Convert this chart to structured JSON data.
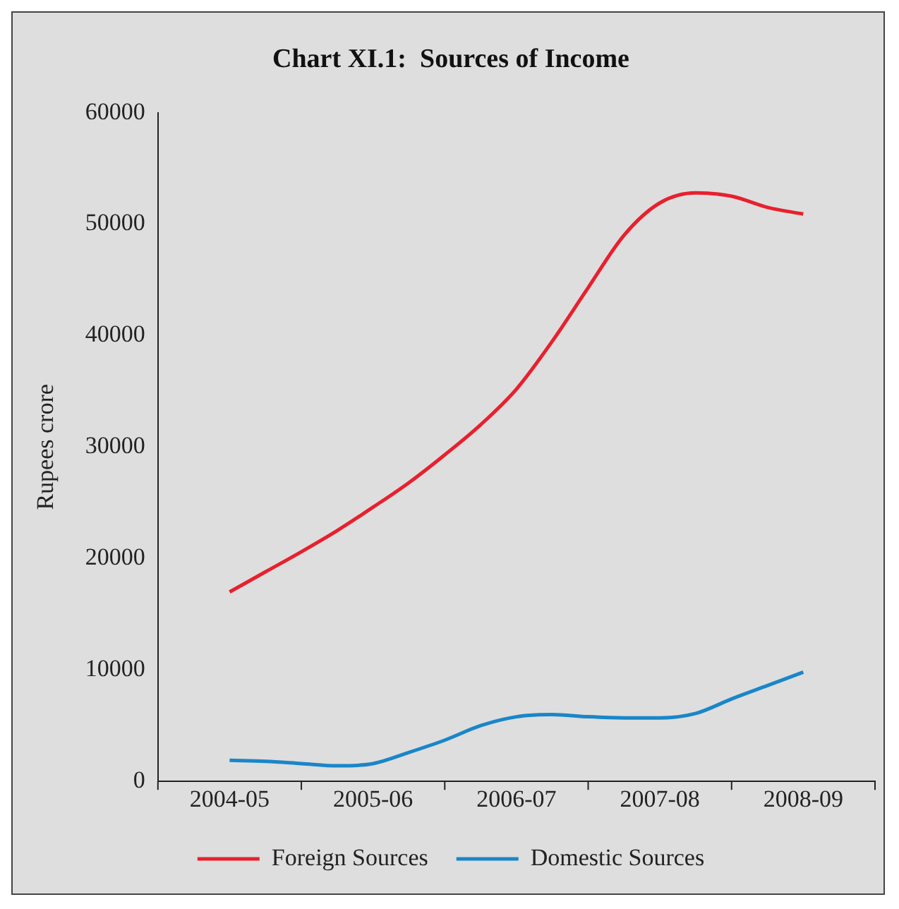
{
  "chart_data": {
    "type": "line",
    "title": "Chart XI.1:  Sources of Income",
    "ylabel": "Rupees crore",
    "categories": [
      "2004-05",
      null,
      null,
      null,
      "2005-06",
      null,
      null,
      null,
      "2006-07",
      null,
      null,
      null,
      "2007-08",
      null,
      null,
      null,
      "2008-09"
    ],
    "series": [
      {
        "name": "Foreign Sources",
        "color": "#e8202e",
        "values": [
          17000,
          18800,
          20600,
          22500,
          24600,
          26800,
          29300,
          32000,
          35200,
          39500,
          44300,
          49000,
          51900,
          52800,
          52500,
          51500,
          50900
        ]
      },
      {
        "name": "Domestic Sources",
        "color": "#1a86c8",
        "values": [
          1900,
          1800,
          1600,
          1400,
          1600,
          2600,
          3700,
          5000,
          5800,
          6000,
          5800,
          5700,
          5700,
          6100,
          7400,
          8600,
          9800
        ]
      }
    ],
    "ylim": [
      0,
      60000
    ],
    "yticks": [
      0,
      10000,
      20000,
      30000,
      40000,
      50000,
      60000
    ],
    "grid": false,
    "legend": "bottom",
    "marker": "none",
    "line_style": "solid"
  }
}
